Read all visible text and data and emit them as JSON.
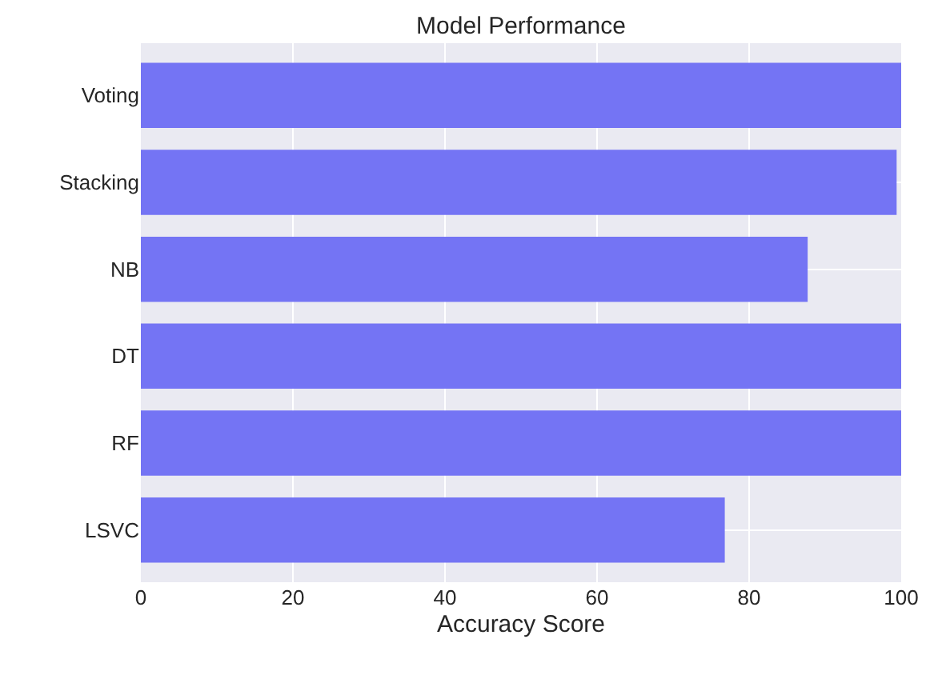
{
  "chart_data": {
    "type": "bar",
    "orientation": "horizontal",
    "title": "Model Performance",
    "xlabel": "Accuracy Score",
    "categories": [
      "Voting",
      "Stacking",
      "NB",
      "DT",
      "RF",
      "LSVC"
    ],
    "values": [
      100,
      99.4,
      87.7,
      100,
      100,
      76.8
    ],
    "color": "#7474f4",
    "xlim": [
      0,
      100
    ],
    "xticks": [
      0,
      20,
      40,
      60,
      80,
      100
    ],
    "grid": true
  }
}
